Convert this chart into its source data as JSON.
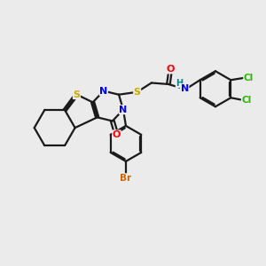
{
  "background_color": "#ebebeb",
  "bond_color": "#1a1a1a",
  "atom_colors": {
    "S": "#ccaa00",
    "N": "#0000ee",
    "O": "#ff0000",
    "Br": "#cc6600",
    "Cl": "#22bb00",
    "H": "#008899"
  },
  "figsize": [
    3.0,
    3.0
  ],
  "dpi": 100
}
